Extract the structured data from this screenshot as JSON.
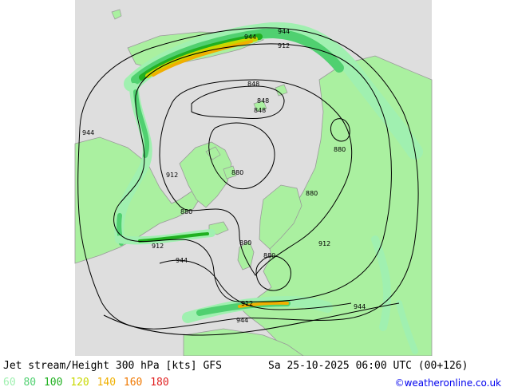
{
  "map": {
    "colors": {
      "ocean": "#dedede",
      "land": "#aaf0a0",
      "coast": "#9a9a9a",
      "contour": "#000000",
      "jet_60": "#a0f0b0",
      "jet_80": "#50d070",
      "jet_100": "#20b020",
      "jet_120": "#c8d800",
      "jet_140": "#f0b000",
      "jet_160": "#f07800",
      "jet_180": "#e02020"
    },
    "contour_labels": [
      "944",
      "944",
      "912",
      "848",
      "848",
      "848",
      "880",
      "944",
      "912",
      "880",
      "880",
      "880",
      "912",
      "880",
      "880",
      "912",
      "944",
      "912",
      "944",
      "944"
    ]
  },
  "footer": {
    "title_left": "Jet stream/Height 300 hPa [kts] GFS",
    "title_right": "Sa 25-10-2025 06:00 UTC (00+126)",
    "legend": [
      {
        "label": "60",
        "color": "#a0f0b0"
      },
      {
        "label": "80",
        "color": "#50d070"
      },
      {
        "label": "100",
        "color": "#20b020"
      },
      {
        "label": "120",
        "color": "#c8d800"
      },
      {
        "label": "140",
        "color": "#f0b000"
      },
      {
        "label": "160",
        "color": "#f07800"
      },
      {
        "label": "180",
        "color": "#e02020"
      }
    ],
    "credit": "©weatheronline.co.uk"
  }
}
